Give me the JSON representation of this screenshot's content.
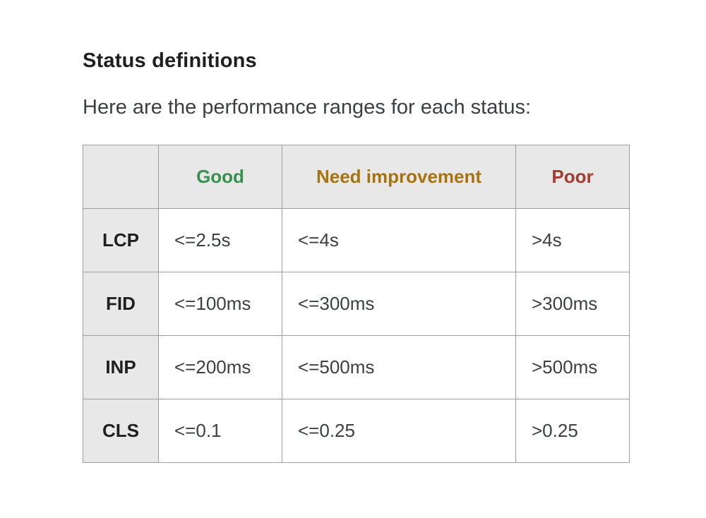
{
  "page": {
    "title": "Status definitions",
    "intro": "Here are the performance ranges for each status:"
  },
  "table": {
    "header": {
      "corner": "",
      "columns": [
        {
          "label": "Good",
          "color": "#35914d"
        },
        {
          "label": "Need improvement",
          "color": "#a8730f"
        },
        {
          "label": "Poor",
          "color": "#a63a2f"
        }
      ]
    },
    "rows": [
      {
        "metric": "LCP",
        "good": "<=2.5s",
        "need_improvement": "<=4s",
        "poor": ">4s"
      },
      {
        "metric": "FID",
        "good": "<=100ms",
        "need_improvement": "<=300ms",
        "poor": ">300ms"
      },
      {
        "metric": "INP",
        "good": "<=200ms",
        "need_improvement": "<=500ms",
        "poor": ">500ms"
      },
      {
        "metric": "CLS",
        "good": "<=0.1",
        "need_improvement": "<=0.25",
        "poor": ">0.25"
      }
    ]
  },
  "colors": {
    "header_background": "#e8e8e8",
    "table_border": "#9e9e9e",
    "heading_text": "#1f1f1f",
    "body_text": "#3c4043",
    "good": "#35914d",
    "need_improvement": "#a8730f",
    "poor": "#a63a2f"
  }
}
